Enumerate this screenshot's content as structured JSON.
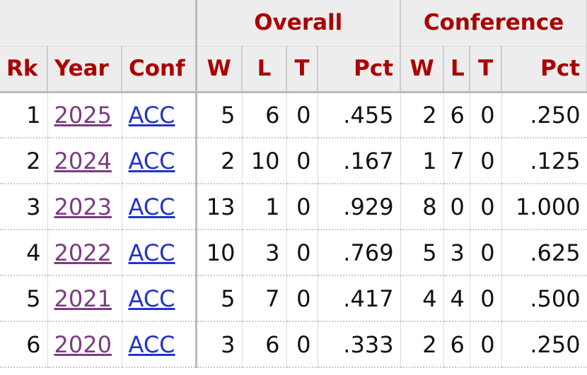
{
  "table": {
    "group_headers": [
      "Overall",
      "Conference"
    ],
    "headers": [
      "Rk",
      "Year",
      "Conf",
      "W",
      "L",
      "T",
      "Pct",
      "W",
      "L",
      "T",
      "Pct"
    ],
    "rows": [
      [
        "1",
        "2025",
        "ACC",
        "5",
        "6",
        "0",
        ".455",
        "2",
        "6",
        "0",
        ".250"
      ],
      [
        "2",
        "2024",
        "ACC",
        "2",
        "10",
        "0",
        ".167",
        "1",
        "7",
        "0",
        ".125"
      ],
      [
        "3",
        "2023",
        "ACC",
        "13",
        "1",
        "0",
        ".929",
        "8",
        "0",
        "0",
        "1.000"
      ],
      [
        "4",
        "2022",
        "ACC",
        "10",
        "3",
        "0",
        ".769",
        "5",
        "3",
        "0",
        ".625"
      ],
      [
        "5",
        "2021",
        "ACC",
        "5",
        "7",
        "0",
        ".417",
        "4",
        "4",
        "0",
        ".500"
      ],
      [
        "6",
        "2020",
        "ACC",
        "3",
        "6",
        "0",
        ".333",
        "2",
        "6",
        "0",
        ".250"
      ]
    ]
  }
}
